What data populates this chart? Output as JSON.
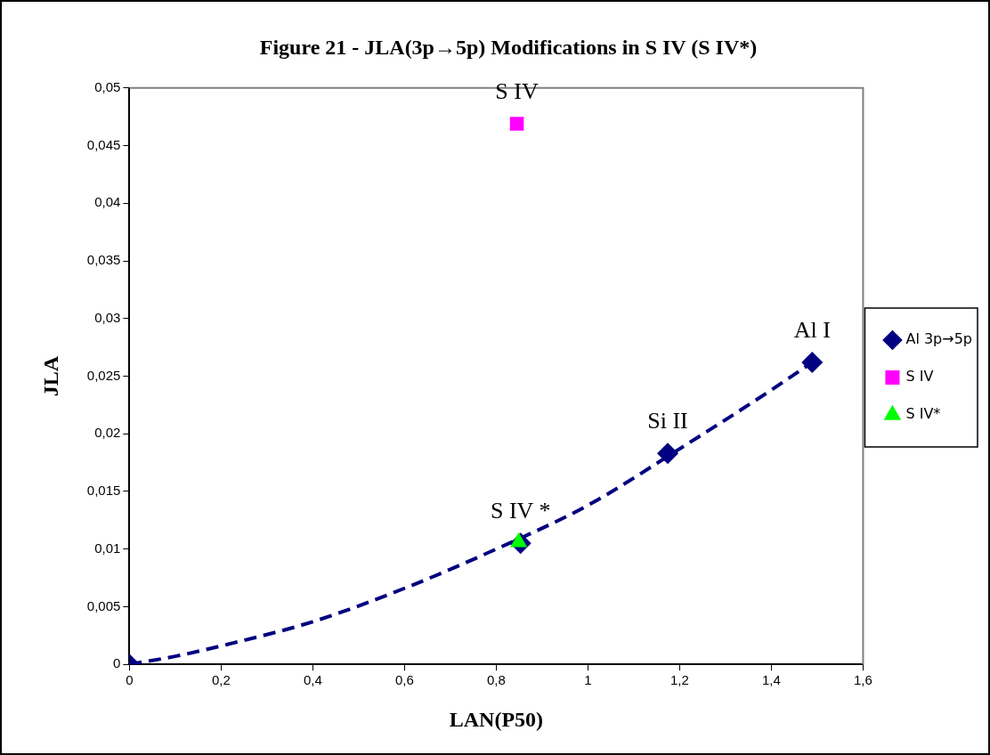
{
  "chart_data": {
    "type": "scatter",
    "title": "Figure 21 - JLA(3p→5p) Modifications in S IV (S IV*)",
    "xlabel": "LAN(P50)",
    "ylabel": "JLA",
    "series": [
      {
        "name": "Al 3p→5p",
        "color": "#000080",
        "marker": "diamond",
        "x": [
          0,
          0.853,
          1.174,
          1.489
        ],
        "values": [
          0,
          0.0105,
          0.0183,
          0.0262
        ]
      },
      {
        "name": "S IV",
        "color": "#ff00ff",
        "marker": "square",
        "x": [
          0.845
        ],
        "values": [
          0.0469
        ]
      },
      {
        "name": "S IV*",
        "color": "#00ff00",
        "marker": "triangle",
        "x": [
          0.849
        ],
        "values": [
          0.0106
        ]
      },
      {
        "type": "line",
        "color": "#000080",
        "line_style": "dashed",
        "marker": "none",
        "x": [
          0,
          0.1,
          0.2,
          0.4,
          0.6,
          0.8,
          1.0,
          1.2,
          1.4,
          1.489
        ],
        "values": [
          0,
          0.0007,
          0.0016,
          0.0037,
          0.0066,
          0.01,
          0.0138,
          0.0187,
          0.0238,
          0.0262
        ]
      }
    ],
    "xlim": [
      0,
      1.6
    ],
    "xticks": [
      0,
      {
        "value": 0.2,
        "label": "0,2"
      },
      {
        "value": 0.4,
        "label": "0,4"
      },
      {
        "value": 0.6,
        "label": "0,6"
      },
      {
        "value": 0.8,
        "label": "0,8"
      },
      1,
      {
        "value": 1.2,
        "label": "1,2"
      },
      {
        "value": 1.4,
        "label": "1,4"
      },
      {
        "value": 1.6,
        "label": "1,6"
      }
    ],
    "ylim": [
      0,
      0.05
    ],
    "yticks": [
      0,
      {
        "value": 0.005,
        "label": "0,005"
      },
      {
        "value": 0.01,
        "label": "0,01"
      },
      {
        "value": 0.015,
        "label": "0,015"
      },
      {
        "value": 0.02,
        "label": "0,02"
      },
      {
        "value": 0.025,
        "label": "0,025"
      },
      {
        "value": 0.03,
        "label": "0,03"
      },
      {
        "value": 0.035,
        "label": "0,035"
      },
      {
        "value": 0.04,
        "label": "0,04"
      },
      {
        "value": 0.045,
        "label": "0,045"
      },
      {
        "value": 0.05,
        "label": "0,05"
      }
    ],
    "annotations": [
      {
        "text": "S IV",
        "x": 0.845,
        "y": 0.0469
      },
      {
        "text": "S IV *",
        "x": 0.853,
        "y": 0.0105
      },
      {
        "text": "Si II",
        "x": 1.174,
        "y": 0.0183
      },
      {
        "text": "Al I",
        "x": 1.489,
        "y": 0.0262
      }
    ],
    "grid": false,
    "legend": "right"
  }
}
